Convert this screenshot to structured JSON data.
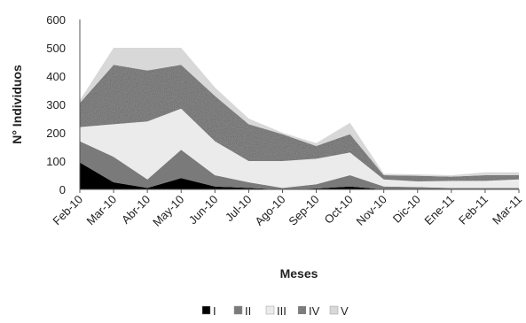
{
  "chart_data": {
    "type": "area",
    "stacked": true,
    "categories": [
      "Feb-10",
      "Mar-10",
      "Abr-10",
      "May-10",
      "Jun-10",
      "Jul-10",
      "Ago-10",
      "Sep-10",
      "Oct-10",
      "Nov-10",
      "Dic-10",
      "Ene-11",
      "Feb-11",
      "Mar-11"
    ],
    "xlabel": "Meses",
    "ylabel": "N° Individuos",
    "ylim": [
      0,
      600
    ],
    "yticks": [
      0,
      100,
      200,
      300,
      400,
      500,
      600
    ],
    "grid": false,
    "legend_position": "bottom",
    "series": [
      {
        "name": "I",
        "color": "#000000",
        "values": [
          95,
          25,
          5,
          40,
          10,
          5,
          0,
          3,
          10,
          0,
          0,
          0,
          0,
          0
        ]
      },
      {
        "name": "II",
        "color": "#7a7a7a",
        "values": [
          75,
          90,
          30,
          100,
          40,
          20,
          5,
          15,
          40,
          10,
          8,
          5,
          5,
          5
        ]
      },
      {
        "name": "III",
        "color": "#ebebeb",
        "values": [
          50,
          115,
          205,
          145,
          120,
          75,
          95,
          90,
          80,
          25,
          20,
          25,
          25,
          30
        ]
      },
      {
        "name": "IV",
        "color": "#8e8e8e",
        "values": [
          85,
          210,
          180,
          155,
          160,
          130,
          95,
          45,
          65,
          15,
          20,
          15,
          20,
          15
        ]
      },
      {
        "name": "V",
        "color": "#d8d8d8",
        "values": [
          10,
          60,
          80,
          60,
          30,
          20,
          5,
          10,
          40,
          5,
          5,
          5,
          10,
          10
        ]
      }
    ]
  }
}
